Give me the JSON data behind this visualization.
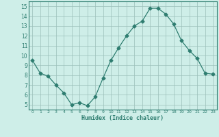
{
  "x": [
    0,
    1,
    2,
    3,
    4,
    5,
    6,
    7,
    8,
    9,
    10,
    11,
    12,
    13,
    14,
    15,
    16,
    17,
    18,
    19,
    20,
    21,
    22,
    23
  ],
  "y": [
    9.5,
    8.2,
    7.9,
    7.0,
    6.2,
    5.0,
    5.2,
    4.9,
    5.8,
    7.7,
    9.5,
    10.8,
    12.0,
    13.0,
    13.5,
    14.8,
    14.8,
    14.2,
    13.2,
    11.5,
    10.5,
    9.7,
    8.2,
    8.1
  ],
  "line_color": "#2e7d70",
  "marker": "D",
  "marker_size": 2.5,
  "bg_color": "#ceeee8",
  "grid_color": "#9bbfba",
  "xlabel": "Humidex (Indice chaleur)",
  "ylim": [
    4.5,
    15.5
  ],
  "xlim": [
    -0.5,
    23.5
  ],
  "yticks": [
    5,
    6,
    7,
    8,
    9,
    10,
    11,
    12,
    13,
    14,
    15
  ],
  "xticks": [
    0,
    1,
    2,
    3,
    4,
    5,
    6,
    7,
    8,
    9,
    10,
    11,
    12,
    13,
    14,
    15,
    16,
    17,
    18,
    19,
    20,
    21,
    22,
    23
  ]
}
